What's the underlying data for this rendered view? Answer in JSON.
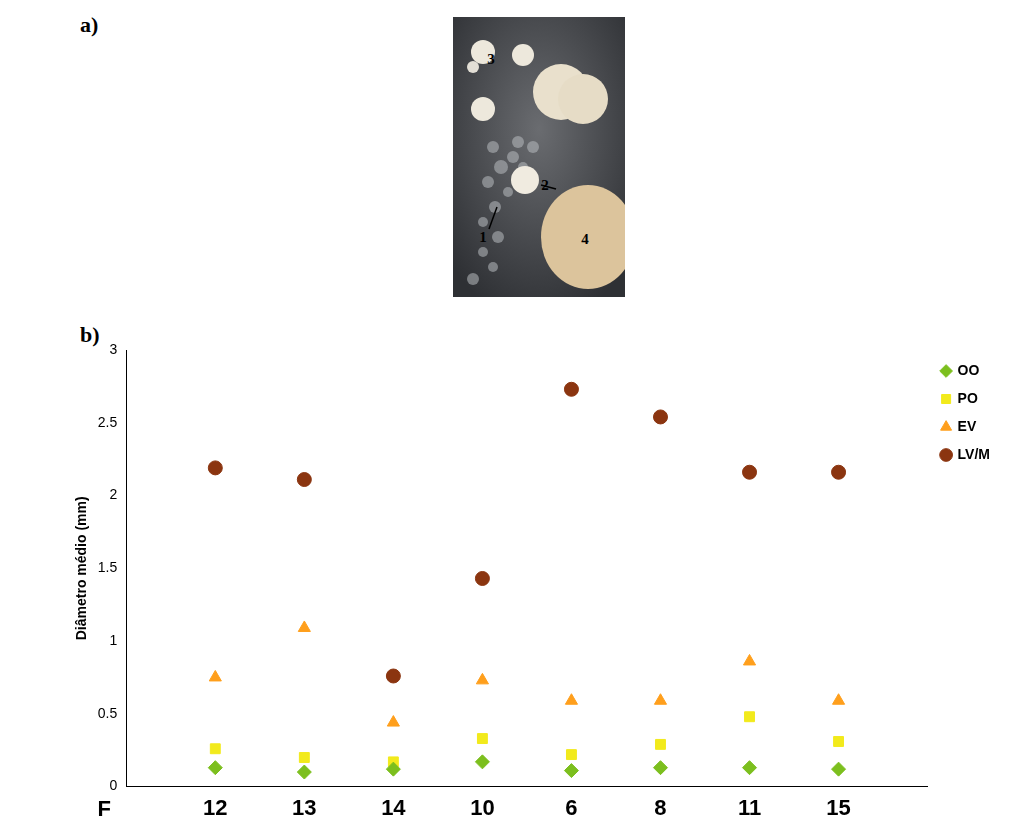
{
  "panel_a": {
    "label": "a)",
    "markers": [
      "1",
      "2",
      "3",
      "4"
    ]
  },
  "panel_b": {
    "label": "b)"
  },
  "chart_data": {
    "type": "scatter",
    "x_label": "F",
    "y_label": "Diâmetro médio (mm)",
    "categories": [
      null,
      "12",
      "13",
      "14",
      "10",
      "6",
      "8",
      "11",
      "15",
      null
    ],
    "series": [
      {
        "name": "OO",
        "color": "#7cbf1e",
        "marker": "diamond",
        "values": [
          null,
          0.13,
          0.1,
          0.12,
          0.17,
          0.11,
          0.13,
          0.13,
          0.12,
          null
        ]
      },
      {
        "name": "PO",
        "color": "#f2ea1c",
        "marker": "square",
        "values": [
          null,
          0.26,
          0.2,
          0.17,
          0.33,
          0.22,
          0.29,
          0.48,
          0.31,
          null
        ]
      },
      {
        "name": "EV",
        "color": "#ff9f1c",
        "marker": "triangle",
        "values": [
          null,
          0.75,
          1.09,
          0.44,
          0.73,
          0.59,
          0.59,
          0.86,
          0.59,
          null
        ]
      },
      {
        "name": "LV/M",
        "color": "#8b3510",
        "marker": "circle",
        "values": [
          null,
          2.19,
          2.11,
          0.76,
          1.43,
          2.73,
          2.54,
          2.16,
          2.16,
          null
        ]
      }
    ],
    "ylim": [
      0,
      3
    ],
    "yticks": [
      0,
      0.5,
      1,
      1.5,
      2,
      2.5,
      3
    ],
    "grid": false,
    "legend": "right"
  }
}
